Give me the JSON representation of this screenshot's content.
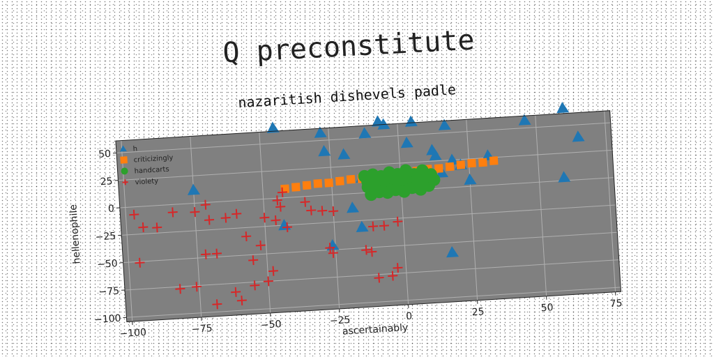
{
  "page": {
    "title": "Q preconstitute"
  },
  "chart_data": {
    "type": "scatter",
    "title": "nazaritish dishevels padle",
    "xlabel": "ascertainably",
    "ylabel": "hellenophile",
    "xlim": [
      -102,
      77
    ],
    "ylim": [
      -104,
      61
    ],
    "xticks": [
      -100,
      -75,
      -50,
      -25,
      0,
      25,
      50,
      75
    ],
    "yticks": [
      50,
      25,
      0,
      -25,
      -50,
      -75,
      -100
    ],
    "grid": true,
    "legend": "upper-left",
    "colors": {
      "plot_bg": "#808080",
      "grid": "#b0b0b0",
      "h": "#1f77b4",
      "criticizingly": "#ff7f0e",
      "handcarts": "#2ca02c",
      "violety": "#d62728"
    },
    "series": [
      {
        "name": "h",
        "marker": "triangle",
        "points": [
          [
            -45,
            64
          ],
          [
            -28,
            57
          ],
          [
            -12,
            54
          ],
          [
            -7,
            64
          ],
          [
            -5,
            61
          ],
          [
            5,
            62
          ],
          [
            17,
            57
          ],
          [
            46,
            57
          ],
          [
            60,
            66
          ],
          [
            65,
            39
          ],
          [
            59,
            3
          ],
          [
            -27,
            40
          ],
          [
            -20,
            36
          ],
          [
            3,
            43
          ],
          [
            12,
            35
          ],
          [
            32,
            27
          ],
          [
            19,
            25
          ],
          [
            15,
            14
          ],
          [
            7,
            2
          ],
          [
            0,
            2
          ],
          [
            -14,
            14
          ],
          [
            -18,
            -13
          ],
          [
            -15,
            -31
          ],
          [
            -43,
            -25
          ],
          [
            -26,
            -46
          ],
          [
            17,
            -59
          ],
          [
            -75,
            12
          ],
          [
            25,
            6
          ],
          [
            13,
            30
          ],
          [
            22,
            20
          ]
        ]
      },
      {
        "name": "criticizingly",
        "marker": "square",
        "points": [
          [
            -42,
            8
          ],
          [
            -38,
            9
          ],
          [
            -34,
            10
          ],
          [
            -30,
            11
          ],
          [
            -26,
            11
          ],
          [
            -22,
            12
          ],
          [
            -18,
            13
          ],
          [
            -14,
            13
          ],
          [
            -10,
            14
          ],
          [
            -6,
            15
          ],
          [
            -2,
            15
          ],
          [
            2,
            16
          ],
          [
            6,
            17
          ],
          [
            10,
            18
          ],
          [
            14,
            18
          ],
          [
            18,
            19
          ],
          [
            22,
            20
          ],
          [
            26,
            21
          ],
          [
            30,
            21
          ],
          [
            34,
            22
          ]
        ]
      },
      {
        "name": "handcarts",
        "marker": "circle",
        "points": [
          [
            -13,
            15
          ],
          [
            -10,
            16
          ],
          [
            -7,
            14
          ],
          [
            -4,
            17
          ],
          [
            -1,
            15
          ],
          [
            2,
            18
          ],
          [
            5,
            14
          ],
          [
            8,
            17
          ],
          [
            11,
            13
          ],
          [
            -12,
            5
          ],
          [
            -9,
            7
          ],
          [
            -6,
            5
          ],
          [
            -3,
            8
          ],
          [
            0,
            6
          ],
          [
            3,
            9
          ],
          [
            6,
            5
          ],
          [
            9,
            8
          ],
          [
            -11,
            -2
          ],
          [
            -8,
            0
          ],
          [
            -5,
            -1
          ],
          [
            -2,
            1
          ],
          [
            1,
            -1
          ],
          [
            4,
            2
          ],
          [
            7,
            0
          ],
          [
            10,
            3
          ],
          [
            -12,
            10
          ],
          [
            -9,
            11
          ],
          [
            -6,
            10
          ],
          [
            -3,
            12
          ],
          [
            0,
            10
          ],
          [
            3,
            12
          ],
          [
            6,
            9
          ],
          [
            9,
            11
          ],
          [
            12,
            8
          ]
        ]
      },
      {
        "name": "violety",
        "marker": "plus",
        "points": [
          [
            -97,
            -7
          ],
          [
            -94,
            -19
          ],
          [
            -89,
            -20
          ],
          [
            -83,
            -7
          ],
          [
            -96,
            -51
          ],
          [
            -75,
            -8
          ],
          [
            -71,
            -2
          ],
          [
            -70,
            -16
          ],
          [
            -64,
            -15
          ],
          [
            -60,
            -12
          ],
          [
            -57,
            -33
          ],
          [
            -55,
            -55
          ],
          [
            -52,
            -42
          ],
          [
            -50,
            -17
          ],
          [
            -46,
            -20
          ],
          [
            -45,
            -2
          ],
          [
            -43,
            5
          ],
          [
            -44,
            -8
          ],
          [
            -42,
            -27
          ],
          [
            -35,
            -5
          ],
          [
            -33,
            -13
          ],
          [
            -29,
            -14
          ],
          [
            -25,
            -15
          ],
          [
            -27,
            -48
          ],
          [
            -26,
            -53
          ],
          [
            -14,
            -52
          ],
          [
            -12,
            -54
          ],
          [
            -11,
            -31
          ],
          [
            -7,
            -31
          ],
          [
            -2,
            -28
          ],
          [
            -3,
            -70
          ],
          [
            -5,
            -77
          ],
          [
            -10,
            -78
          ],
          [
            -72,
            -47
          ],
          [
            -68,
            -47
          ],
          [
            -76,
            -76
          ],
          [
            -82,
            -77
          ],
          [
            -69,
            -93
          ],
          [
            -62,
            -83
          ],
          [
            -60,
            -91
          ],
          [
            -55,
            -78
          ],
          [
            -50,
            -75
          ],
          [
            -48,
            -66
          ]
        ]
      }
    ]
  }
}
